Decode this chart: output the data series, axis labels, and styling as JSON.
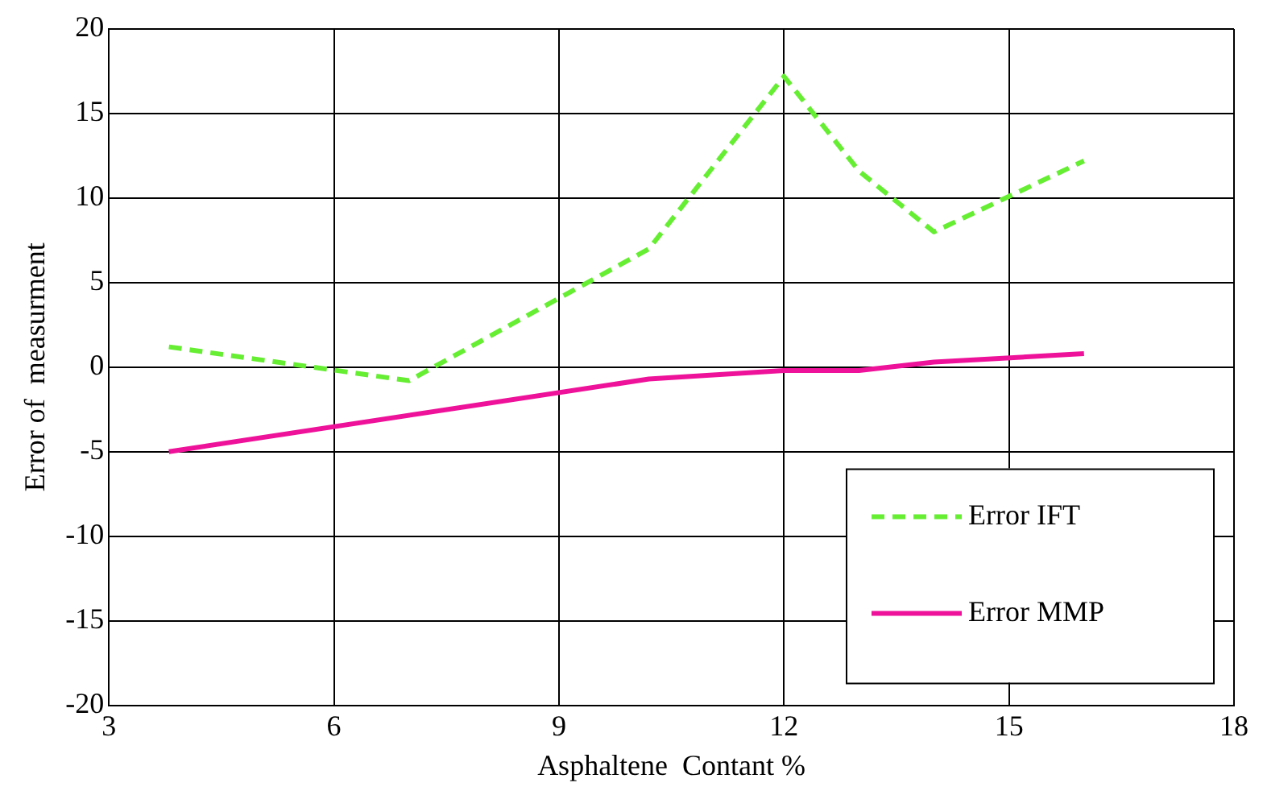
{
  "chart_data": {
    "type": "line",
    "xlabel": "Asphaltene  Contant %",
    "ylabel": "Error of  measurment",
    "xlim": [
      3,
      18
    ],
    "xticks": [
      3,
      6,
      9,
      12,
      15,
      18
    ],
    "ylim": [
      -20,
      20
    ],
    "yticks": [
      -20,
      -15,
      -10,
      -5,
      0,
      5,
      10,
      15,
      20
    ],
    "grid": true,
    "legend": "bottom right",
    "marker": "none",
    "series": [
      {
        "name": "Error IFT",
        "color": "#66ee33",
        "line_style": "dashed",
        "x": [
          3.8,
          7,
          10.2,
          12,
          13,
          14,
          16
        ],
        "values": [
          1.2,
          -0.8,
          7,
          17.2,
          11.6,
          8,
          12.2
        ]
      },
      {
        "name": "Error MMP",
        "color": "#ee1199",
        "line_style": "solid",
        "x": [
          3.8,
          10.2,
          12,
          13,
          14,
          16
        ],
        "values": [
          -5,
          -0.7,
          -0.2,
          -0.2,
          0.3,
          0.8
        ]
      }
    ]
  }
}
